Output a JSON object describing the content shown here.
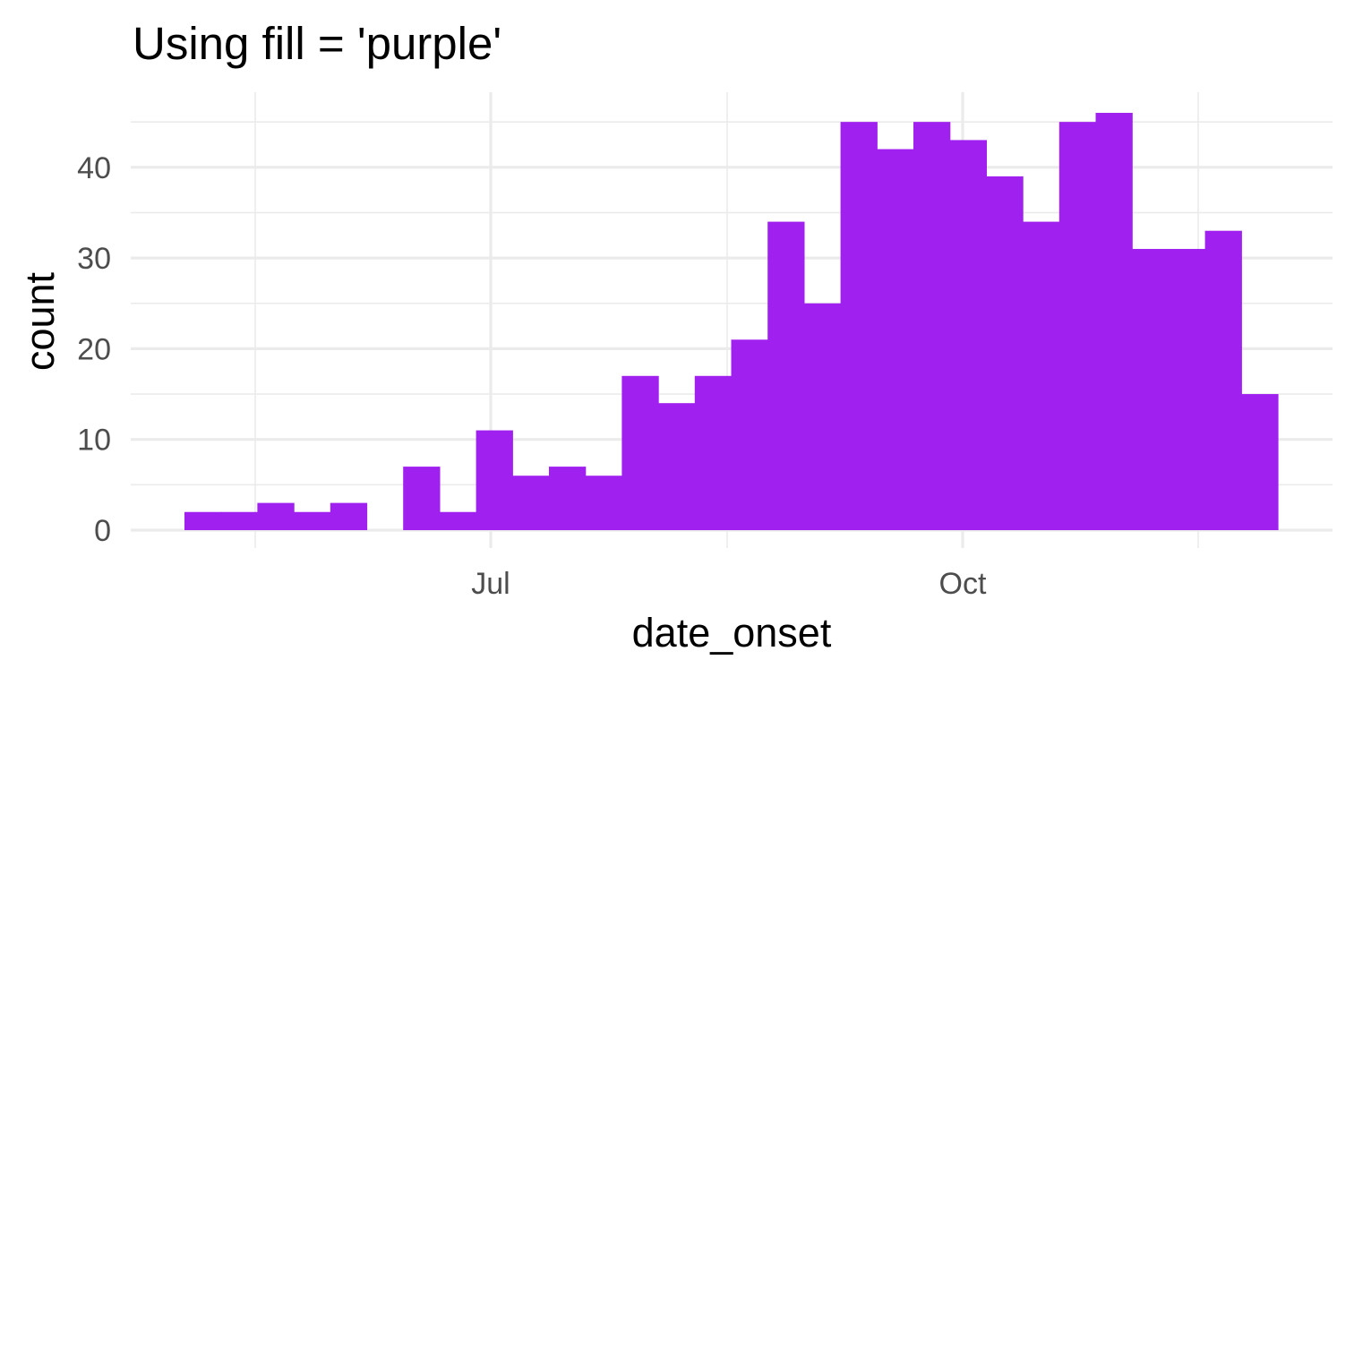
{
  "chart_data": {
    "type": "bar",
    "title": "Using fill = 'purple'",
    "xlabel": "date_onset",
    "ylabel": "count",
    "x_tick_labels": [
      "Jul",
      "Oct"
    ],
    "y_ticks": [
      0,
      10,
      20,
      30,
      40
    ],
    "ylim": [
      0,
      48.3
    ],
    "bin_counts": [
      2,
      2,
      3,
      2,
      3,
      0,
      7,
      2,
      11,
      6,
      7,
      6,
      17,
      14,
      17,
      21,
      34,
      25,
      45,
      42,
      45,
      43,
      39,
      34,
      45,
      46,
      31,
      31,
      33,
      15
    ],
    "fill_color": "#A020F0",
    "grid": true,
    "background": "#ffffff",
    "grid_color": "#ebebeb"
  }
}
